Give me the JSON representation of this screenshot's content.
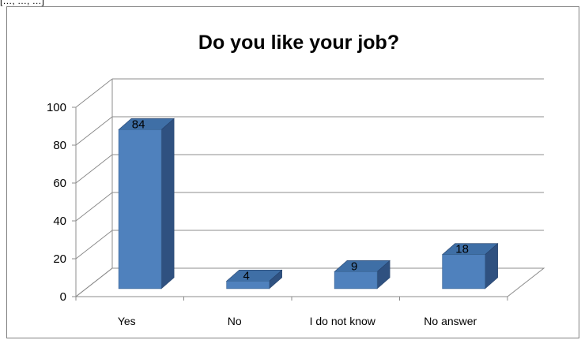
{
  "corner_text": "[…, …, …]",
  "chart_data": {
    "type": "bar",
    "title": "Do you like your job?",
    "categories": [
      "Yes",
      "No",
      "I do not know",
      "No answer"
    ],
    "values": [
      84,
      4,
      9,
      18
    ],
    "data_labels": [
      "84",
      "4",
      "9",
      "18"
    ],
    "yticks": [
      "0",
      "20",
      "40",
      "60",
      "80",
      "100"
    ],
    "ylim": [
      0,
      100
    ],
    "xlabel": "",
    "ylabel": "",
    "grid": true,
    "legend": "none",
    "three_d": true,
    "colors": {
      "front": "#4F81BD",
      "top": "#3F6FA6",
      "side": "#2F5180",
      "grid": "#8C8C8C"
    }
  }
}
